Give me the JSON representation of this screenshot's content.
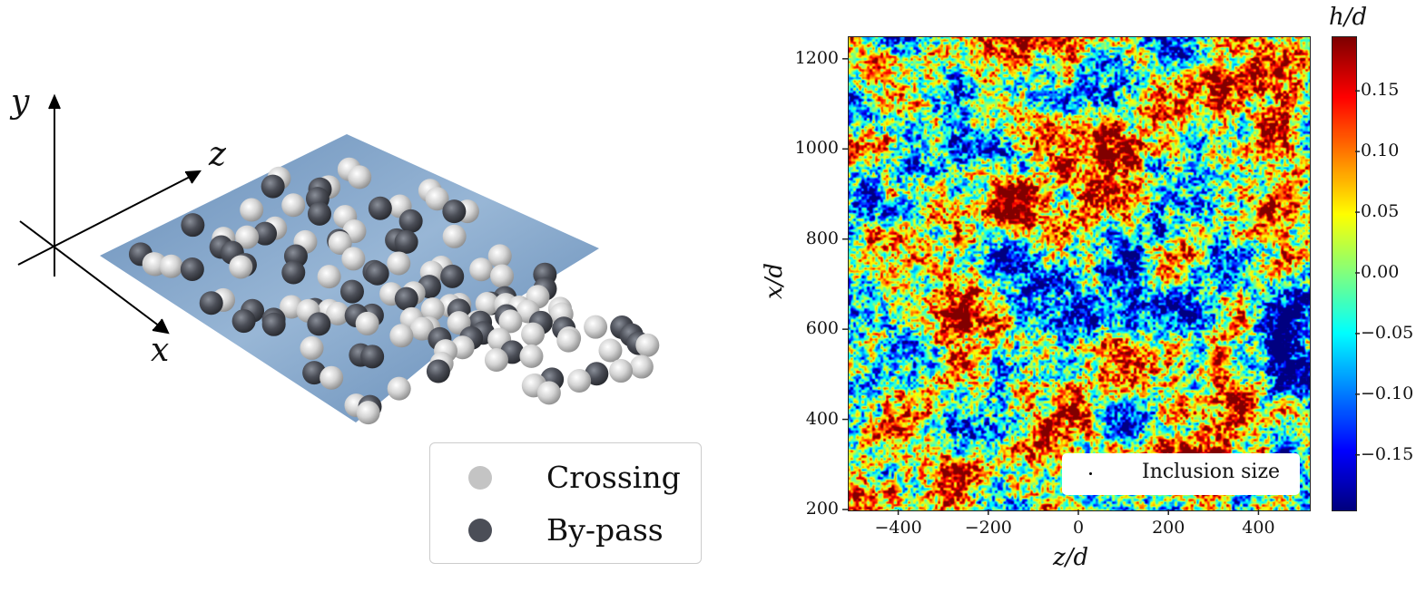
{
  "left_panel": {
    "axis_labels": {
      "y": "y",
      "z": "z",
      "x": "x"
    },
    "legend": [
      {
        "label": "Crossing",
        "color": "#c4c4c4"
      },
      {
        "label": "By-pass",
        "color": "#4b4e57"
      }
    ],
    "surface_color": "#6f97c2"
  },
  "chart_data": {
    "type": "heatmap",
    "title": "",
    "xlabel": "z/d",
    "ylabel": "x/d",
    "colorbar_label": "h/d",
    "colormap": "jet",
    "xlim": [
      -512,
      512
    ],
    "ylim": [
      200,
      1250
    ],
    "clim": [
      -0.195,
      0.195
    ],
    "xticks": [
      -400,
      -200,
      0,
      200,
      400
    ],
    "xtick_labels": [
      "−400",
      "−200",
      "0",
      "200",
      "400"
    ],
    "yticks": [
      200,
      400,
      600,
      800,
      1000,
      1200
    ],
    "ytick_labels": [
      "200",
      "400",
      "600",
      "800",
      "1000",
      "1200"
    ],
    "cbar_ticks": [
      -0.15,
      -0.1,
      -0.05,
      0.0,
      0.05,
      0.1,
      0.15
    ],
    "cbar_tick_labels": [
      "−0.15",
      "−0.10",
      "−0.05",
      "0.00",
      "0.05",
      "0.10",
      "0.15"
    ],
    "legend": {
      "label": "Inclusion size",
      "placement": "lower-right"
    },
    "description_values": "random rough surface height field, values spanning about -0.2 to 0.2"
  }
}
